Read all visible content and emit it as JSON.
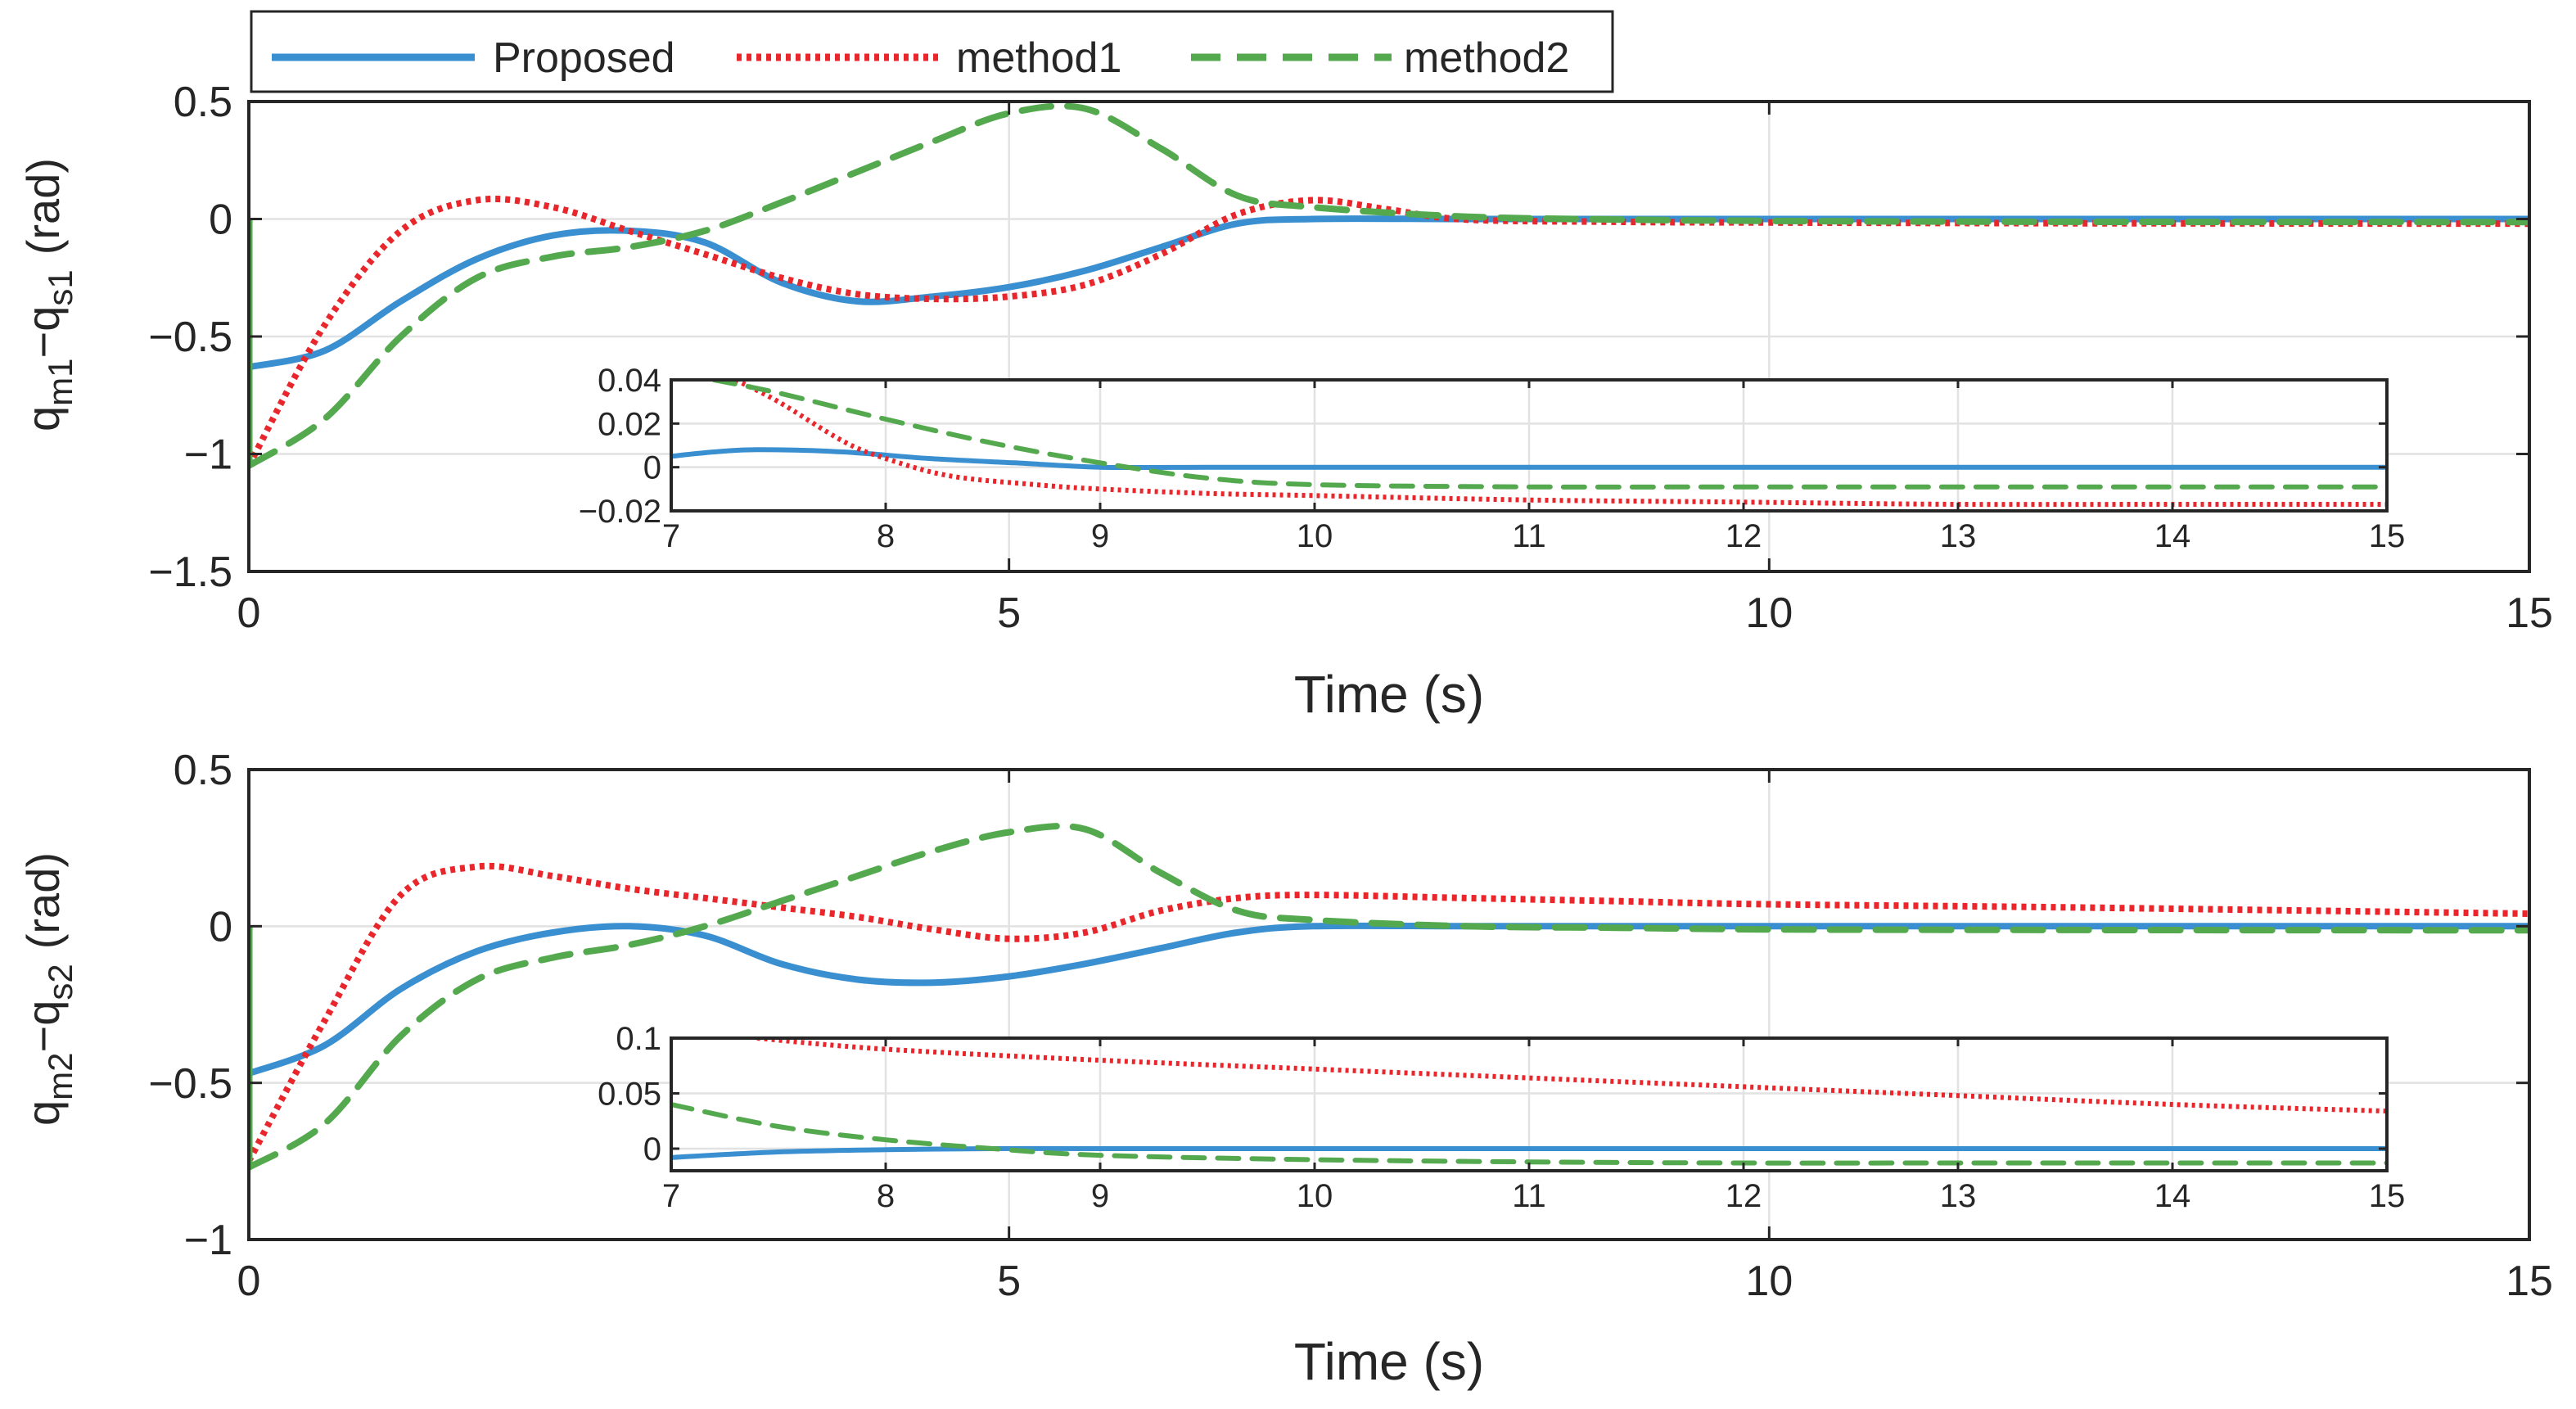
{
  "legend": {
    "entries": [
      {
        "label": "Proposed",
        "color": "#3a8fd0",
        "style": "solid"
      },
      {
        "label": "method1",
        "color": "#e8262b",
        "style": "dotted"
      },
      {
        "label": "method2",
        "color": "#54a94f",
        "style": "dashed"
      }
    ]
  },
  "chart_data": [
    {
      "type": "line",
      "id": "top-main",
      "xlabel": "Time (s)",
      "ylabel_base": "q",
      "ylabel_sub1": "m1",
      "ylabel_mid": "−q",
      "ylabel_sub2": "s1",
      "ylabel_unit": "(rad)",
      "xlim": [
        0,
        15
      ],
      "ylim": [
        -1.5,
        0.5
      ],
      "xticks": [
        0,
        5,
        10,
        15
      ],
      "xtick_labels": [
        "0",
        "5",
        "10",
        "15"
      ],
      "yticks": [
        -1.5,
        -1,
        -0.5,
        0,
        0.5
      ],
      "ytick_labels": [
        "−1.5",
        "−1",
        "−0.5",
        "0",
        "0.5"
      ],
      "grid": true,
      "series": [
        {
          "name": "Proposed",
          "x": [
            0,
            0.5,
            1,
            1.5,
            2,
            2.5,
            3,
            3.5,
            4,
            4.5,
            5,
            5.5,
            6,
            6.5,
            7,
            8,
            9,
            10,
            12,
            15
          ],
          "y": [
            -0.63,
            -0.56,
            -0.35,
            -0.17,
            -0.07,
            -0.05,
            -0.1,
            -0.27,
            -0.35,
            -0.33,
            -0.29,
            -0.22,
            -0.12,
            -0.02,
            0.0,
            0.0,
            0.0,
            0.0,
            0.0,
            0.0
          ]
        },
        {
          "name": "method1",
          "x": [
            0,
            0.5,
            1,
            1.5,
            2,
            2.5,
            3,
            3.5,
            4,
            4.5,
            5,
            5.5,
            6,
            6.5,
            7,
            7.5,
            8,
            9,
            10,
            12,
            15
          ],
          "y": [
            -1.05,
            -0.45,
            -0.05,
            0.08,
            0.05,
            -0.05,
            -0.15,
            -0.25,
            -0.32,
            -0.34,
            -0.33,
            -0.28,
            -0.15,
            0.02,
            0.08,
            0.04,
            -0.002,
            -0.012,
            -0.015,
            -0.018,
            -0.02
          ]
        },
        {
          "name": "method2",
          "x": [
            0,
            0.5,
            1,
            1.5,
            2,
            2.5,
            3,
            3.5,
            4,
            4.5,
            5,
            5.5,
            6,
            6.5,
            7,
            8,
            9,
            10,
            12,
            15
          ],
          "y": [
            -1.05,
            -0.85,
            -0.5,
            -0.25,
            -0.16,
            -0.12,
            -0.05,
            0.07,
            0.2,
            0.33,
            0.45,
            0.47,
            0.3,
            0.1,
            0.05,
            0.01,
            -0.002,
            -0.008,
            -0.012,
            -0.013
          ]
        }
      ]
    },
    {
      "type": "line",
      "id": "top-inset",
      "xlim": [
        7,
        15
      ],
      "ylim": [
        -0.02,
        0.04
      ],
      "xticks": [
        7,
        8,
        9,
        10,
        11,
        12,
        13,
        14,
        15
      ],
      "xtick_labels": [
        "7",
        "8",
        "9",
        "10",
        "11",
        "12",
        "13",
        "14",
        "15"
      ],
      "yticks": [
        -0.02,
        0,
        0.02,
        0.04
      ],
      "ytick_labels": [
        "−0.02",
        "0",
        "0.02",
        "0.04"
      ],
      "grid": true,
      "series": [
        {
          "name": "Proposed",
          "x": [
            7,
            7.2,
            7.4,
            7.8,
            8.2,
            8.6,
            9,
            9.5,
            10,
            11,
            12,
            13,
            14,
            15
          ],
          "y": [
            0.005,
            0.007,
            0.008,
            0.007,
            0.004,
            0.002,
            0.0,
            0.0,
            0.0,
            0.0,
            0.0,
            0.0,
            0.0,
            0.0
          ]
        },
        {
          "name": "method1",
          "x": [
            7.3,
            7.5,
            7.8,
            8.0,
            8.3,
            8.7,
            9,
            9.5,
            10,
            11,
            12,
            13,
            14,
            15
          ],
          "y": [
            0.04,
            0.03,
            0.012,
            0.004,
            -0.004,
            -0.008,
            -0.01,
            -0.012,
            -0.013,
            -0.015,
            -0.016,
            -0.017,
            -0.017,
            -0.017
          ]
        },
        {
          "name": "method2",
          "x": [
            7.2,
            7.5,
            8,
            8.5,
            9,
            9.5,
            10,
            11,
            12,
            13,
            14,
            15
          ],
          "y": [
            0.04,
            0.034,
            0.022,
            0.011,
            0.002,
            -0.005,
            -0.008,
            -0.009,
            -0.009,
            -0.009,
            -0.009,
            -0.009
          ]
        }
      ]
    },
    {
      "type": "line",
      "id": "bottom-main",
      "xlabel": "Time (s)",
      "ylabel_base": "q",
      "ylabel_sub1": "m2",
      "ylabel_mid": "−q",
      "ylabel_sub2": "s2",
      "ylabel_unit": "(rad)",
      "xlim": [
        0,
        15
      ],
      "ylim": [
        -1,
        0.5
      ],
      "xticks": [
        0,
        5,
        10,
        15
      ],
      "xtick_labels": [
        "0",
        "5",
        "10",
        "15"
      ],
      "yticks": [
        -1,
        -0.5,
        0,
        0.5
      ],
      "ytick_labels": [
        "−1",
        "−0.5",
        "0",
        "0.5"
      ],
      "grid": true,
      "series": [
        {
          "name": "Proposed",
          "x": [
            0,
            0.5,
            1,
            1.5,
            2,
            2.5,
            3,
            3.5,
            4,
            4.5,
            5,
            5.5,
            6,
            6.5,
            7,
            8,
            9,
            10,
            12,
            15
          ],
          "y": [
            -0.47,
            -0.38,
            -0.2,
            -0.08,
            -0.02,
            0.0,
            -0.03,
            -0.12,
            -0.17,
            -0.18,
            -0.16,
            -0.12,
            -0.07,
            -0.02,
            0.0,
            0.0,
            0.0,
            0.0,
            0.0,
            0.0
          ]
        },
        {
          "name": "method1",
          "x": [
            0,
            0.5,
            1,
            1.5,
            2,
            2.5,
            3,
            3.5,
            4,
            4.5,
            5,
            5.5,
            6,
            6.5,
            7,
            8,
            9,
            10,
            12,
            15
          ],
          "y": [
            -0.75,
            -0.3,
            0.1,
            0.19,
            0.16,
            0.12,
            0.09,
            0.06,
            0.03,
            -0.01,
            -0.04,
            -0.02,
            0.05,
            0.09,
            0.1,
            0.09,
            0.08,
            0.07,
            0.06,
            0.04
          ]
        },
        {
          "name": "method2",
          "x": [
            0,
            0.5,
            1,
            1.5,
            2,
            2.5,
            3,
            3.5,
            4,
            4.5,
            5,
            5.5,
            6,
            6.5,
            7,
            8,
            9,
            10,
            12,
            15
          ],
          "y": [
            -0.77,
            -0.63,
            -0.35,
            -0.17,
            -0.1,
            -0.06,
            0.0,
            0.08,
            0.16,
            0.24,
            0.3,
            0.31,
            0.17,
            0.05,
            0.02,
            0.0,
            -0.005,
            -0.01,
            -0.012,
            -0.013
          ]
        }
      ]
    },
    {
      "type": "line",
      "id": "bottom-inset",
      "xlim": [
        7,
        15
      ],
      "ylim": [
        -0.02,
        0.1
      ],
      "xticks": [
        7,
        8,
        9,
        10,
        11,
        12,
        13,
        14,
        15
      ],
      "xtick_labels": [
        "7",
        "8",
        "9",
        "10",
        "11",
        "12",
        "13",
        "14",
        "15"
      ],
      "yticks": [
        0,
        0.05,
        0.1
      ],
      "ytick_labels": [
        "0",
        "0.05",
        "0.1"
      ],
      "grid": true,
      "series": [
        {
          "name": "Proposed",
          "x": [
            7,
            7.5,
            8,
            8.5,
            9,
            10,
            11,
            12,
            13,
            14,
            15
          ],
          "y": [
            -0.008,
            -0.003,
            -0.001,
            0.0,
            0.0,
            0.0,
            0.0,
            0.0,
            0.0,
            0.0,
            0.0
          ]
        },
        {
          "name": "method1",
          "x": [
            7.4,
            8,
            9,
            10,
            11,
            12,
            13,
            14,
            15
          ],
          "y": [
            0.1,
            0.09,
            0.08,
            0.072,
            0.064,
            0.056,
            0.048,
            0.04,
            0.034
          ]
        },
        {
          "name": "method2",
          "x": [
            7,
            7.5,
            8,
            8.5,
            9,
            10,
            11,
            12,
            13,
            14,
            15
          ],
          "y": [
            0.04,
            0.02,
            0.008,
            0.0,
            -0.006,
            -0.01,
            -0.012,
            -0.013,
            -0.013,
            -0.013,
            -0.013
          ]
        }
      ]
    }
  ]
}
